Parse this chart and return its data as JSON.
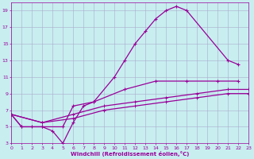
{
  "bg_color": "#c8eef0",
  "line_color": "#990099",
  "grid_color": "#aaaacc",
  "xlabel": "Windchill (Refroidissement éolien,°C)",
  "xlim": [
    0,
    23
  ],
  "ylim": [
    3,
    20
  ],
  "xticks": [
    0,
    1,
    2,
    3,
    4,
    5,
    6,
    7,
    8,
    9,
    10,
    11,
    12,
    13,
    14,
    15,
    16,
    17,
    18,
    19,
    20,
    21,
    22,
    23
  ],
  "yticks": [
    3,
    5,
    7,
    9,
    11,
    13,
    15,
    17,
    19
  ],
  "curves": [
    {
      "x": [
        0,
        1,
        2,
        3,
        4,
        5,
        6,
        7,
        8,
        10,
        11,
        12,
        13,
        14,
        15,
        16,
        17,
        21,
        22
      ],
      "y": [
        6.5,
        5.0,
        5.0,
        5.0,
        4.5,
        3.0,
        5.5,
        7.5,
        8.0,
        11.0,
        13.0,
        15.0,
        16.5,
        18.0,
        19.0,
        19.5,
        19.0,
        13.0,
        12.5
      ]
    },
    {
      "x": [
        0,
        1,
        3,
        5,
        6,
        8,
        11,
        14,
        17,
        20,
        22
      ],
      "y": [
        6.5,
        5.0,
        5.0,
        5.0,
        7.5,
        8.0,
        9.5,
        10.5,
        10.5,
        10.5,
        10.5
      ]
    },
    {
      "x": [
        0,
        3,
        6,
        9,
        12,
        15,
        18,
        21,
        23
      ],
      "y": [
        6.5,
        5.5,
        6.5,
        7.5,
        8.0,
        8.5,
        9.0,
        9.5,
        9.5
      ]
    },
    {
      "x": [
        0,
        3,
        6,
        9,
        12,
        15,
        18,
        21,
        23
      ],
      "y": [
        6.5,
        5.5,
        6.0,
        7.0,
        7.5,
        8.0,
        8.5,
        9.0,
        9.0
      ]
    }
  ]
}
